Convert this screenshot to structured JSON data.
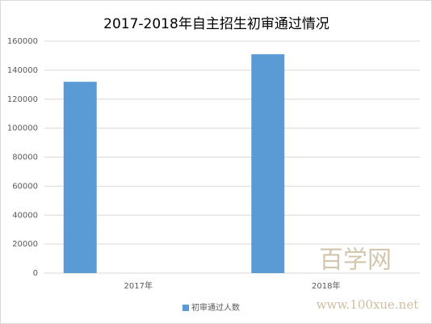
{
  "chart_data": {
    "type": "bar",
    "title": "2017-2018年自主招生初审通过情况",
    "categories": [
      "2017年",
      "2018年"
    ],
    "series": [
      {
        "name": "初审通过人数",
        "color": "#5b9bd5",
        "values": [
          132000,
          151000
        ]
      }
    ],
    "ylim": [
      0,
      160000
    ],
    "yticks": [
      0,
      20000,
      40000,
      60000,
      80000,
      100000,
      120000,
      140000,
      160000
    ],
    "grid": true,
    "legend": "bottom"
  },
  "watermark": {
    "brand": "百学网",
    "url": "www.100xue.net"
  }
}
